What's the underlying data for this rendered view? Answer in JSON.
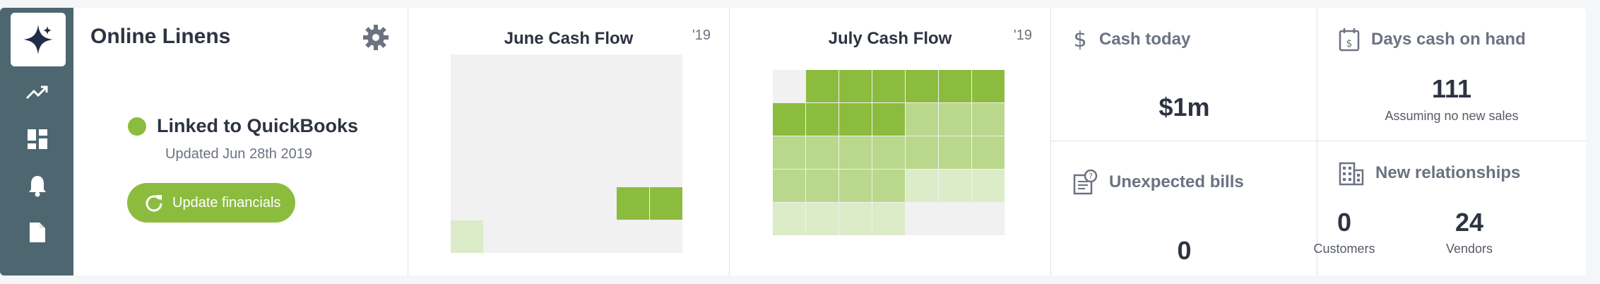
{
  "sidebar": {
    "logo_icon": "sparkle-icon",
    "items": [
      {
        "icon": "trending-up-icon"
      },
      {
        "icon": "dashboard-icon"
      },
      {
        "icon": "bell-icon"
      },
      {
        "icon": "document-icon"
      }
    ]
  },
  "company": {
    "name": "Online Linens",
    "status_label": "Linked to QuickBooks",
    "updated_text": "Updated Jun 28th 2019",
    "update_button_label": "Update financials",
    "status_color": "#8cbc3e"
  },
  "june": {
    "title": "June Cash Flow",
    "year": "'19",
    "cells": [
      "e",
      "e",
      "e",
      "e",
      "e",
      "e",
      "e",
      "e",
      "e",
      "e",
      "e",
      "e",
      "e",
      "e",
      "e",
      "e",
      "e",
      "e",
      "e",
      "e",
      "e",
      "e",
      "e",
      "e",
      "e",
      "e",
      "e",
      "e",
      "e",
      "e",
      "e",
      "e",
      "e",
      "d",
      "d",
      "l",
      "e",
      "e",
      "e",
      "e",
      "e",
      "e"
    ]
  },
  "july": {
    "title": "July Cash Flow",
    "year": "'19",
    "cells": [
      "e",
      "d",
      "d",
      "d",
      "d",
      "d",
      "d",
      "d",
      "d",
      "d",
      "d",
      "m",
      "m",
      "m",
      "m",
      "m",
      "m",
      "m",
      "m",
      "m",
      "m",
      "m",
      "m",
      "m",
      "m",
      "l",
      "l",
      "l",
      "l",
      "l",
      "l",
      "l",
      "e",
      "e",
      "e"
    ]
  },
  "colors": {
    "d": "#8cbc3e",
    "m": "#b9d88c",
    "l": "#dcebc8",
    "e": "#f1f1f1"
  },
  "kpis": {
    "cash_today": {
      "title": "Cash today",
      "value": "$1m",
      "icon": "dollar-icon"
    },
    "days_cash": {
      "title": "Days cash on hand",
      "value": "111",
      "sub": "Assuming no new sales",
      "icon": "calendar-dollar-icon"
    },
    "unexpected_bills": {
      "title": "Unexpected bills",
      "value": "0",
      "icon": "bill-question-icon"
    },
    "new_relationships": {
      "title": "New relationships",
      "icon": "building-icon",
      "customers_value": "0",
      "customers_label": "Customers",
      "vendors_value": "24",
      "vendors_label": "Vendors"
    }
  }
}
